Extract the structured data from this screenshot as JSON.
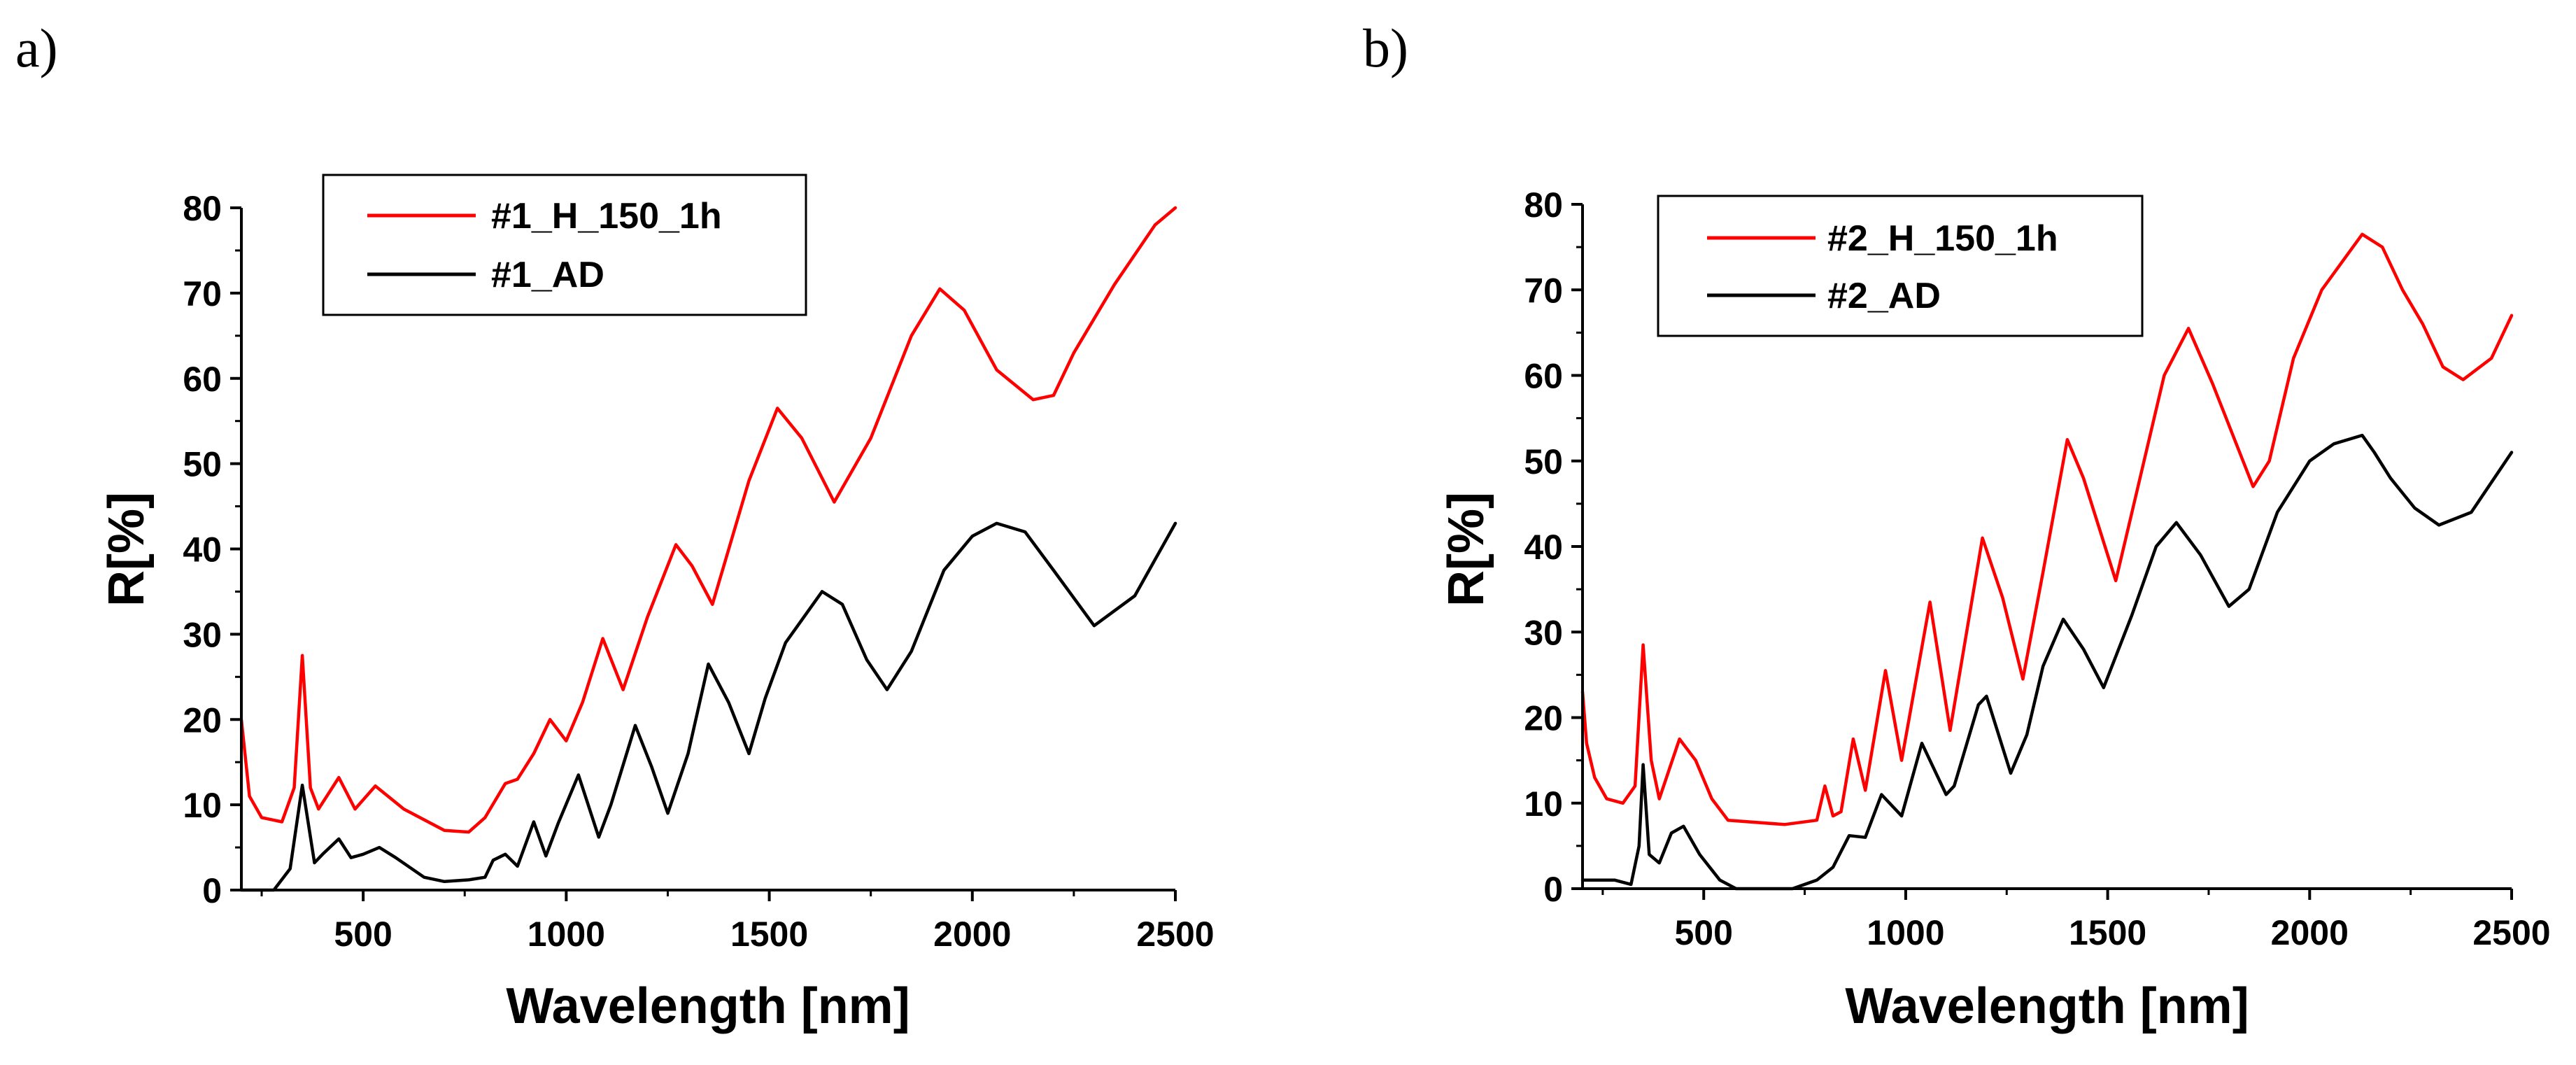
{
  "chart_data": [
    {
      "type": "line",
      "panel_label": "a)",
      "xlabel": "Wavelength [nm]",
      "ylabel": "R[%]",
      "xlim": [
        200,
        2500
      ],
      "ylim": [
        0,
        80
      ],
      "xticks": [
        500,
        1000,
        1500,
        2000,
        2500
      ],
      "yticks": [
        0,
        10,
        20,
        30,
        40,
        50,
        60,
        70,
        80
      ],
      "legend_position": "top-left",
      "series": [
        {
          "name": "#1_H_150_1h",
          "color": "#ff0000",
          "x": [
            200,
            220,
            250,
            300,
            330,
            350,
            370,
            390,
            440,
            480,
            530,
            600,
            700,
            760,
            800,
            850,
            880,
            920,
            960,
            1000,
            1040,
            1090,
            1140,
            1200,
            1270,
            1310,
            1360,
            1450,
            1520,
            1580,
            1660,
            1750,
            1850,
            1920,
            1980,
            2060,
            2150,
            2200,
            2250,
            2350,
            2450,
            2500
          ],
          "y": [
            20,
            11,
            8.5,
            8,
            12,
            27.5,
            12,
            9.5,
            13.2,
            9.5,
            12.2,
            9.5,
            7,
            6.8,
            8.5,
            12.5,
            13,
            16,
            20,
            17.5,
            22,
            29.5,
            23.5,
            32,
            40.5,
            38,
            33.5,
            48,
            56.5,
            53,
            45.5,
            53,
            65,
            70.5,
            68,
            61,
            57.5,
            58,
            63,
            71,
            78,
            80
          ]
        },
        {
          "name": "#1_AD",
          "color": "#000000",
          "x": [
            200,
            250,
            280,
            320,
            350,
            380,
            400,
            440,
            470,
            500,
            540,
            580,
            650,
            700,
            760,
            800,
            820,
            850,
            880,
            920,
            950,
            980,
            1030,
            1080,
            1110,
            1170,
            1210,
            1250,
            1300,
            1350,
            1400,
            1450,
            1490,
            1540,
            1630,
            1680,
            1740,
            1790,
            1850,
            1930,
            2000,
            2060,
            2130,
            2200,
            2300,
            2400,
            2500
          ],
          "y": [
            0,
            0,
            0,
            2.5,
            12.3,
            3.2,
            4.2,
            6,
            3.8,
            4.2,
            5,
            3.8,
            1.5,
            1,
            1.2,
            1.5,
            3.5,
            4.2,
            2.8,
            8,
            4,
            7.8,
            13.5,
            6.2,
            10,
            19.3,
            14.5,
            9,
            16,
            26.5,
            22,
            16,
            22.5,
            29,
            35,
            33.5,
            27,
            23.5,
            28,
            37.5,
            41.5,
            43,
            42,
            37.5,
            31,
            34.5,
            43
          ]
        }
      ]
    },
    {
      "type": "line",
      "panel_label": "b)",
      "xlabel": "Wavelength [nm]",
      "ylabel": "R[%]",
      "xlim": [
        200,
        2500
      ],
      "ylim": [
        0,
        80
      ],
      "xticks": [
        500,
        1000,
        1500,
        2000,
        2500
      ],
      "yticks": [
        0,
        10,
        20,
        30,
        40,
        50,
        60,
        70,
        80
      ],
      "legend_position": "top-left",
      "series": [
        {
          "name": "#2_H_150_1h",
          "color": "#ff0000",
          "x": [
            200,
            210,
            230,
            260,
            300,
            330,
            350,
            370,
            390,
            440,
            480,
            520,
            560,
            700,
            780,
            800,
            820,
            840,
            870,
            900,
            950,
            990,
            1060,
            1110,
            1190,
            1240,
            1290,
            1340,
            1400,
            1440,
            1520,
            1560,
            1640,
            1700,
            1760,
            1860,
            1900,
            1960,
            2030,
            2130,
            2180,
            2230,
            2280,
            2330,
            2380,
            2450,
            2500
          ],
          "y": [
            23,
            17,
            13,
            10.5,
            10,
            12,
            28.5,
            15,
            10.5,
            17.5,
            15,
            10.5,
            8,
            7.5,
            8,
            12,
            8.5,
            9,
            17.5,
            11.5,
            25.5,
            15,
            33.5,
            18.5,
            41,
            34,
            24.5,
            37,
            52.5,
            48,
            36,
            44,
            60,
            65.5,
            59,
            47,
            50,
            62,
            70,
            76.5,
            75,
            70,
            66,
            61,
            59.5,
            62,
            67
          ]
        },
        {
          "name": "#2_AD",
          "color": "#000000",
          "x": [
            200,
            280,
            320,
            340,
            350,
            365,
            390,
            420,
            450,
            490,
            540,
            580,
            650,
            720,
            780,
            820,
            860,
            900,
            940,
            990,
            1040,
            1100,
            1120,
            1180,
            1200,
            1260,
            1300,
            1340,
            1390,
            1440,
            1490,
            1560,
            1620,
            1670,
            1730,
            1800,
            1850,
            1920,
            2000,
            2060,
            2130,
            2160,
            2200,
            2260,
            2320,
            2400,
            2500
          ],
          "y": [
            1,
            1,
            0.5,
            5,
            14.5,
            4,
            3,
            6.5,
            7.3,
            4,
            1,
            0,
            0,
            0,
            1,
            2.5,
            6.2,
            6,
            11,
            8.5,
            17,
            11,
            12,
            21.5,
            22.5,
            13.5,
            18,
            26,
            31.5,
            28,
            23.5,
            32,
            40,
            42.8,
            39,
            33,
            35,
            44,
            50,
            52,
            53,
            51,
            48,
            44.5,
            42.5,
            44,
            51
          ]
        }
      ]
    }
  ]
}
